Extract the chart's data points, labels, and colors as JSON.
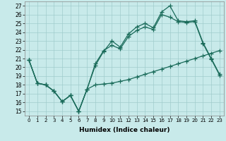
{
  "xlabel": "Humidex (Indice chaleur)",
  "xlim": [
    -0.5,
    23.5
  ],
  "ylim": [
    14.5,
    27.5
  ],
  "xticks": [
    0,
    1,
    2,
    3,
    4,
    5,
    6,
    7,
    8,
    9,
    10,
    11,
    12,
    13,
    14,
    15,
    16,
    17,
    18,
    19,
    20,
    21,
    22,
    23
  ],
  "yticks": [
    15,
    16,
    17,
    18,
    19,
    20,
    21,
    22,
    23,
    24,
    25,
    26,
    27
  ],
  "bg_color": "#c8eaea",
  "line_color": "#1a6b5a",
  "grid_color": "#a0cccc",
  "line1_x": [
    0,
    1,
    2,
    3,
    4,
    5,
    6,
    7,
    8,
    9,
    10,
    11,
    12,
    13,
    14,
    15,
    16,
    17,
    18,
    19,
    20,
    21,
    22,
    23
  ],
  "line1_y": [
    20.8,
    18.2,
    18.0,
    17.3,
    16.1,
    16.8,
    15.0,
    17.5,
    20.2,
    21.8,
    23.0,
    22.3,
    23.8,
    24.6,
    25.0,
    24.5,
    26.3,
    27.0,
    25.3,
    25.2,
    25.3,
    22.8,
    21.0,
    19.2
  ],
  "line2_x": [
    0,
    1,
    2,
    3,
    4,
    5,
    6,
    7,
    8,
    9,
    10,
    11,
    12,
    13,
    14,
    15,
    16,
    17,
    18,
    19,
    20,
    21,
    22,
    23
  ],
  "line2_y": [
    20.8,
    18.2,
    18.0,
    17.3,
    16.1,
    16.8,
    15.0,
    17.5,
    18.0,
    18.1,
    18.2,
    18.4,
    18.6,
    18.9,
    19.2,
    19.5,
    19.8,
    20.1,
    20.4,
    20.7,
    21.0,
    21.3,
    21.6,
    21.9
  ],
  "line3_x": [
    0,
    1,
    2,
    3,
    4,
    5,
    6,
    7,
    8,
    9,
    10,
    11,
    12,
    13,
    14,
    15,
    16,
    17,
    18,
    19,
    20,
    21,
    22,
    23
  ],
  "line3_y": [
    20.8,
    18.2,
    18.0,
    17.3,
    16.1,
    16.8,
    15.0,
    17.5,
    20.4,
    21.9,
    22.5,
    22.1,
    23.5,
    24.2,
    24.6,
    24.3,
    26.0,
    25.7,
    25.2,
    25.1,
    25.2,
    22.7,
    20.9,
    19.1
  ]
}
